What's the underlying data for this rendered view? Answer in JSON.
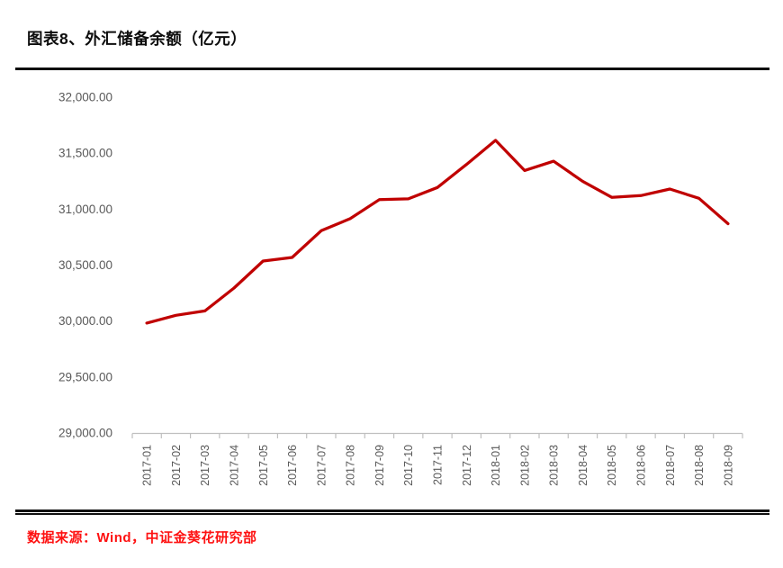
{
  "figure": {
    "title": "图表8、外汇储备余额（亿元）",
    "source": "数据来源：Wind，中证金葵花研究部"
  },
  "palette": {
    "line_red": "#C00000",
    "axis_gray": "#BFBFBF",
    "label_gray": "#595959",
    "rule_black": "#111111",
    "source_red": "#FE1111",
    "background": "#FFFFFF"
  },
  "chart_data": {
    "type": "line",
    "title": "图表8、外汇储备余额（亿元）",
    "xlabel": "",
    "ylabel": "",
    "grid": false,
    "legend_position": "none",
    "ylim": [
      29000,
      32000
    ],
    "y_ticks": [
      {
        "label": "32,000.00",
        "value": 32000
      },
      {
        "label": "31,500.00",
        "value": 31500
      },
      {
        "label": "31,000.00",
        "value": 31000
      },
      {
        "label": "30,500.00",
        "value": 30500
      },
      {
        "label": "30,000.00",
        "value": 30000
      },
      {
        "label": "29,500.00",
        "value": 29500
      },
      {
        "label": "29,000.00",
        "value": 29000
      }
    ],
    "x": [
      "2017-01",
      "2017-02",
      "2017-03",
      "2017-04",
      "2017-05",
      "2017-06",
      "2017-07",
      "2017-08",
      "2017-09",
      "2017-10",
      "2017-11",
      "2017-12",
      "2018-01",
      "2018-02",
      "2018-03",
      "2018-04",
      "2018-05",
      "2018-06",
      "2018-07",
      "2018-08",
      "2018-09"
    ],
    "series": [
      {
        "name": "外汇储备余额",
        "color": "#C00000",
        "values": [
          29982,
          30051,
          30091,
          30295,
          30536,
          30568,
          30807,
          30915,
          31085,
          31092,
          31193,
          31399,
          31615,
          31345,
          31428,
          31249,
          31106,
          31121,
          31180,
          31097,
          30870
        ]
      }
    ]
  }
}
